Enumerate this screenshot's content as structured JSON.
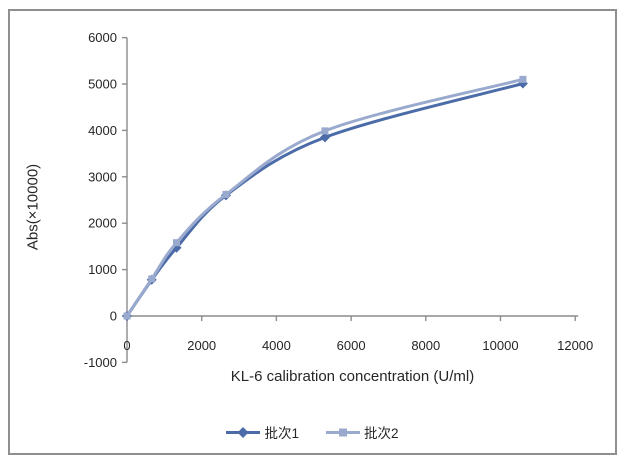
{
  "chart_data": {
    "type": "line",
    "title": "",
    "xlabel": "KL-6 calibration concentration (U/ml)",
    "ylabel": "Abs(×10000)",
    "x": [
      0,
      663,
      1325,
      2650,
      5300,
      10600
    ],
    "series": [
      {
        "name": "批次1",
        "marker": "diamond",
        "color": "#4B6CA8",
        "values": [
          0,
          780,
          1470,
          2600,
          3850,
          5010
        ]
      },
      {
        "name": "批次2",
        "marker": "square",
        "color": "#9AAACE",
        "values": [
          0,
          800,
          1580,
          2620,
          3990,
          5100
        ]
      }
    ],
    "xlim": [
      0,
      12000
    ],
    "ylim": [
      -1000,
      6000
    ],
    "xticks": [
      0,
      2000,
      4000,
      6000,
      8000,
      10000,
      12000
    ],
    "yticks": [
      -1000,
      0,
      1000,
      2000,
      3000,
      4000,
      5000,
      6000
    ],
    "grid": false,
    "smooth": true,
    "legend_position": "bottom"
  },
  "colors": {
    "axis": "#8C8C8C",
    "text": "#262626",
    "frame_border": "#8F8F8F",
    "background": "#FFFFFF"
  }
}
